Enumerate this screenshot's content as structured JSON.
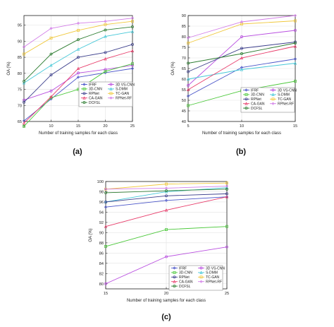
{
  "chart_data": [
    {
      "type": "line",
      "panel_label": "(a)",
      "xlabel": "Number of training samples for each class",
      "ylabel": "OA (%)",
      "x": [
        5,
        10,
        15,
        20,
        25
      ],
      "xlim": [
        5,
        25
      ],
      "ylim": [
        65,
        98
      ],
      "xticks": [
        "5",
        "10",
        "15",
        "20",
        "25"
      ],
      "yticks": [
        "65",
        "70",
        "75",
        "80",
        "85",
        "90",
        "95"
      ],
      "legend_position": "bottom-right",
      "grid": true,
      "series": [
        {
          "name": "IFRF",
          "color": "#4a55c8",
          "values": [
            65.2,
            72.0,
            78.8,
            80.2,
            81.5
          ]
        },
        {
          "name": "3D VS-CNN",
          "color": "#b94fe0",
          "values": [
            71.7,
            74.5,
            80.1,
            81.2,
            82.5
          ]
        },
        {
          "name": "3D-CNN",
          "color": "#4bc83a",
          "values": [
            63.5,
            72.4,
            75.0,
            80.6,
            83.0
          ]
        },
        {
          "name": "S-DMM",
          "color": "#45c8d8",
          "values": [
            77.0,
            82.5,
            87.5,
            91.5,
            93.0
          ]
        },
        {
          "name": "RPNet",
          "color": "#3c3f8c",
          "values": [
            71.0,
            79.5,
            85.0,
            86.5,
            89.0
          ]
        },
        {
          "name": "TC-GAN",
          "color": "#f0c83c",
          "values": [
            86.0,
            91.0,
            93.4,
            95.2,
            96.2
          ]
        },
        {
          "name": "CA-GAN",
          "color": "#e83c6a",
          "values": [
            64.5,
            72.7,
            81.5,
            84.5,
            87.0
          ]
        },
        {
          "name": "RPNet-RF",
          "color": "#d37fe8",
          "values": [
            88.2,
            94.0,
            95.6,
            96.2,
            97.2
          ]
        },
        {
          "name": "DCFSL",
          "color": "#2e7d32",
          "values": [
            77.5,
            86.0,
            90.5,
            93.5,
            94.5
          ]
        }
      ],
      "legend_columns": [
        [
          "IFRF",
          "3D-CNN",
          "RPNet",
          "CA-GAN",
          "DCFSL"
        ],
        [
          "3D VS-CNN",
          "S-DMM",
          "TC-GAN",
          "RPNet-RF"
        ]
      ]
    },
    {
      "type": "line",
      "panel_label": "(b)",
      "xlabel": "Number of training samples for each class",
      "ylabel": "OA (%)",
      "x": [
        5,
        10,
        15
      ],
      "xlim": [
        5,
        15
      ],
      "ylim": [
        40,
        90
      ],
      "xticks": [
        "5",
        "10",
        "15"
      ],
      "yticks": [
        "40",
        "45",
        "50",
        "55",
        "60",
        "65",
        "70",
        "75",
        "80",
        "85",
        "90"
      ],
      "legend_position": "bottom-right",
      "grid": true,
      "series": [
        {
          "name": "IFRF",
          "color": "#4a55c8",
          "values": [
            52.0,
            65.5,
            69.5
          ]
        },
        {
          "name": "3D VS-CNN",
          "color": "#b94fe0",
          "values": [
            57.0,
            80.0,
            83.0
          ]
        },
        {
          "name": "3D-CNN",
          "color": "#4bc83a",
          "values": [
            47.5,
            54.5,
            59.0
          ]
        },
        {
          "name": "S-DMM",
          "color": "#45c8d8",
          "values": [
            60.0,
            64.5,
            67.5
          ]
        },
        {
          "name": "RPNet",
          "color": "#3c3f8c",
          "values": [
            63.5,
            74.5,
            77.5
          ]
        },
        {
          "name": "TC-GAN",
          "color": "#f0c83c",
          "values": [
            77.0,
            86.0,
            87.5
          ]
        },
        {
          "name": "CA-GAN",
          "color": "#e83c6a",
          "values": [
            55.0,
            70.0,
            75.5
          ]
        },
        {
          "name": "RPNet-RF",
          "color": "#d37fe8",
          "values": [
            79.5,
            87.0,
            90.0
          ]
        },
        {
          "name": "DCFSL",
          "color": "#2e7d32",
          "values": [
            67.5,
            72.0,
            77.0
          ]
        }
      ],
      "legend_columns": [
        [
          "IFRF",
          "3D-CNN",
          "RPNet",
          "CA-GAN",
          "DCFSL"
        ],
        [
          "3D VS-CNN",
          "S-DMM",
          "TC-GAN",
          "RPNet-RF"
        ]
      ]
    },
    {
      "type": "line",
      "panel_label": "(c)",
      "xlabel": "Number of training samples for each class",
      "ylabel": "OA (%)",
      "x": [
        15,
        20,
        25
      ],
      "xlim": [
        15,
        25
      ],
      "ylim": [
        79,
        100
      ],
      "xticks": [
        "15",
        "20",
        "25"
      ],
      "yticks": [
        "80",
        "82",
        "84",
        "86",
        "88",
        "90",
        "92",
        "94",
        "96",
        "98",
        "100"
      ],
      "legend_position": "bottom-right",
      "grid": true,
      "series": [
        {
          "name": "IFRF",
          "color": "#4a55c8",
          "values": [
            95.0,
            96.3,
            97.0
          ]
        },
        {
          "name": "3D VS-CNN",
          "color": "#b94fe0",
          "values": [
            80.0,
            85.3,
            87.2
          ]
        },
        {
          "name": "3D-CNN",
          "color": "#4bc83a",
          "values": [
            87.3,
            90.6,
            91.2
          ]
        },
        {
          "name": "S-DMM",
          "color": "#45c8d8",
          "values": [
            96.0,
            98.0,
            98.8
          ]
        },
        {
          "name": "RPNet",
          "color": "#3c3f8c",
          "values": [
            96.0,
            97.2,
            97.6
          ]
        },
        {
          "name": "TC-GAN",
          "color": "#f0c83c",
          "values": [
            98.5,
            99.5,
            99.7
          ]
        },
        {
          "name": "CA-GAN",
          "color": "#e83c6a",
          "values": [
            91.2,
            94.4,
            97.0
          ]
        },
        {
          "name": "RPNet-RF",
          "color": "#d37fe8",
          "values": [
            98.5,
            98.7,
            99.1
          ]
        },
        {
          "name": "DCFSL",
          "color": "#2e7d32",
          "values": [
            97.8,
            98.2,
            98.5
          ]
        }
      ],
      "legend_columns": [
        [
          "IFRF",
          "3D-CNN",
          "RPNet",
          "CA-GAN",
          "DCFSL"
        ],
        [
          "3D VS-CNN",
          "S-DMM",
          "TC-GAN",
          "RPNet-RF"
        ]
      ]
    }
  ]
}
